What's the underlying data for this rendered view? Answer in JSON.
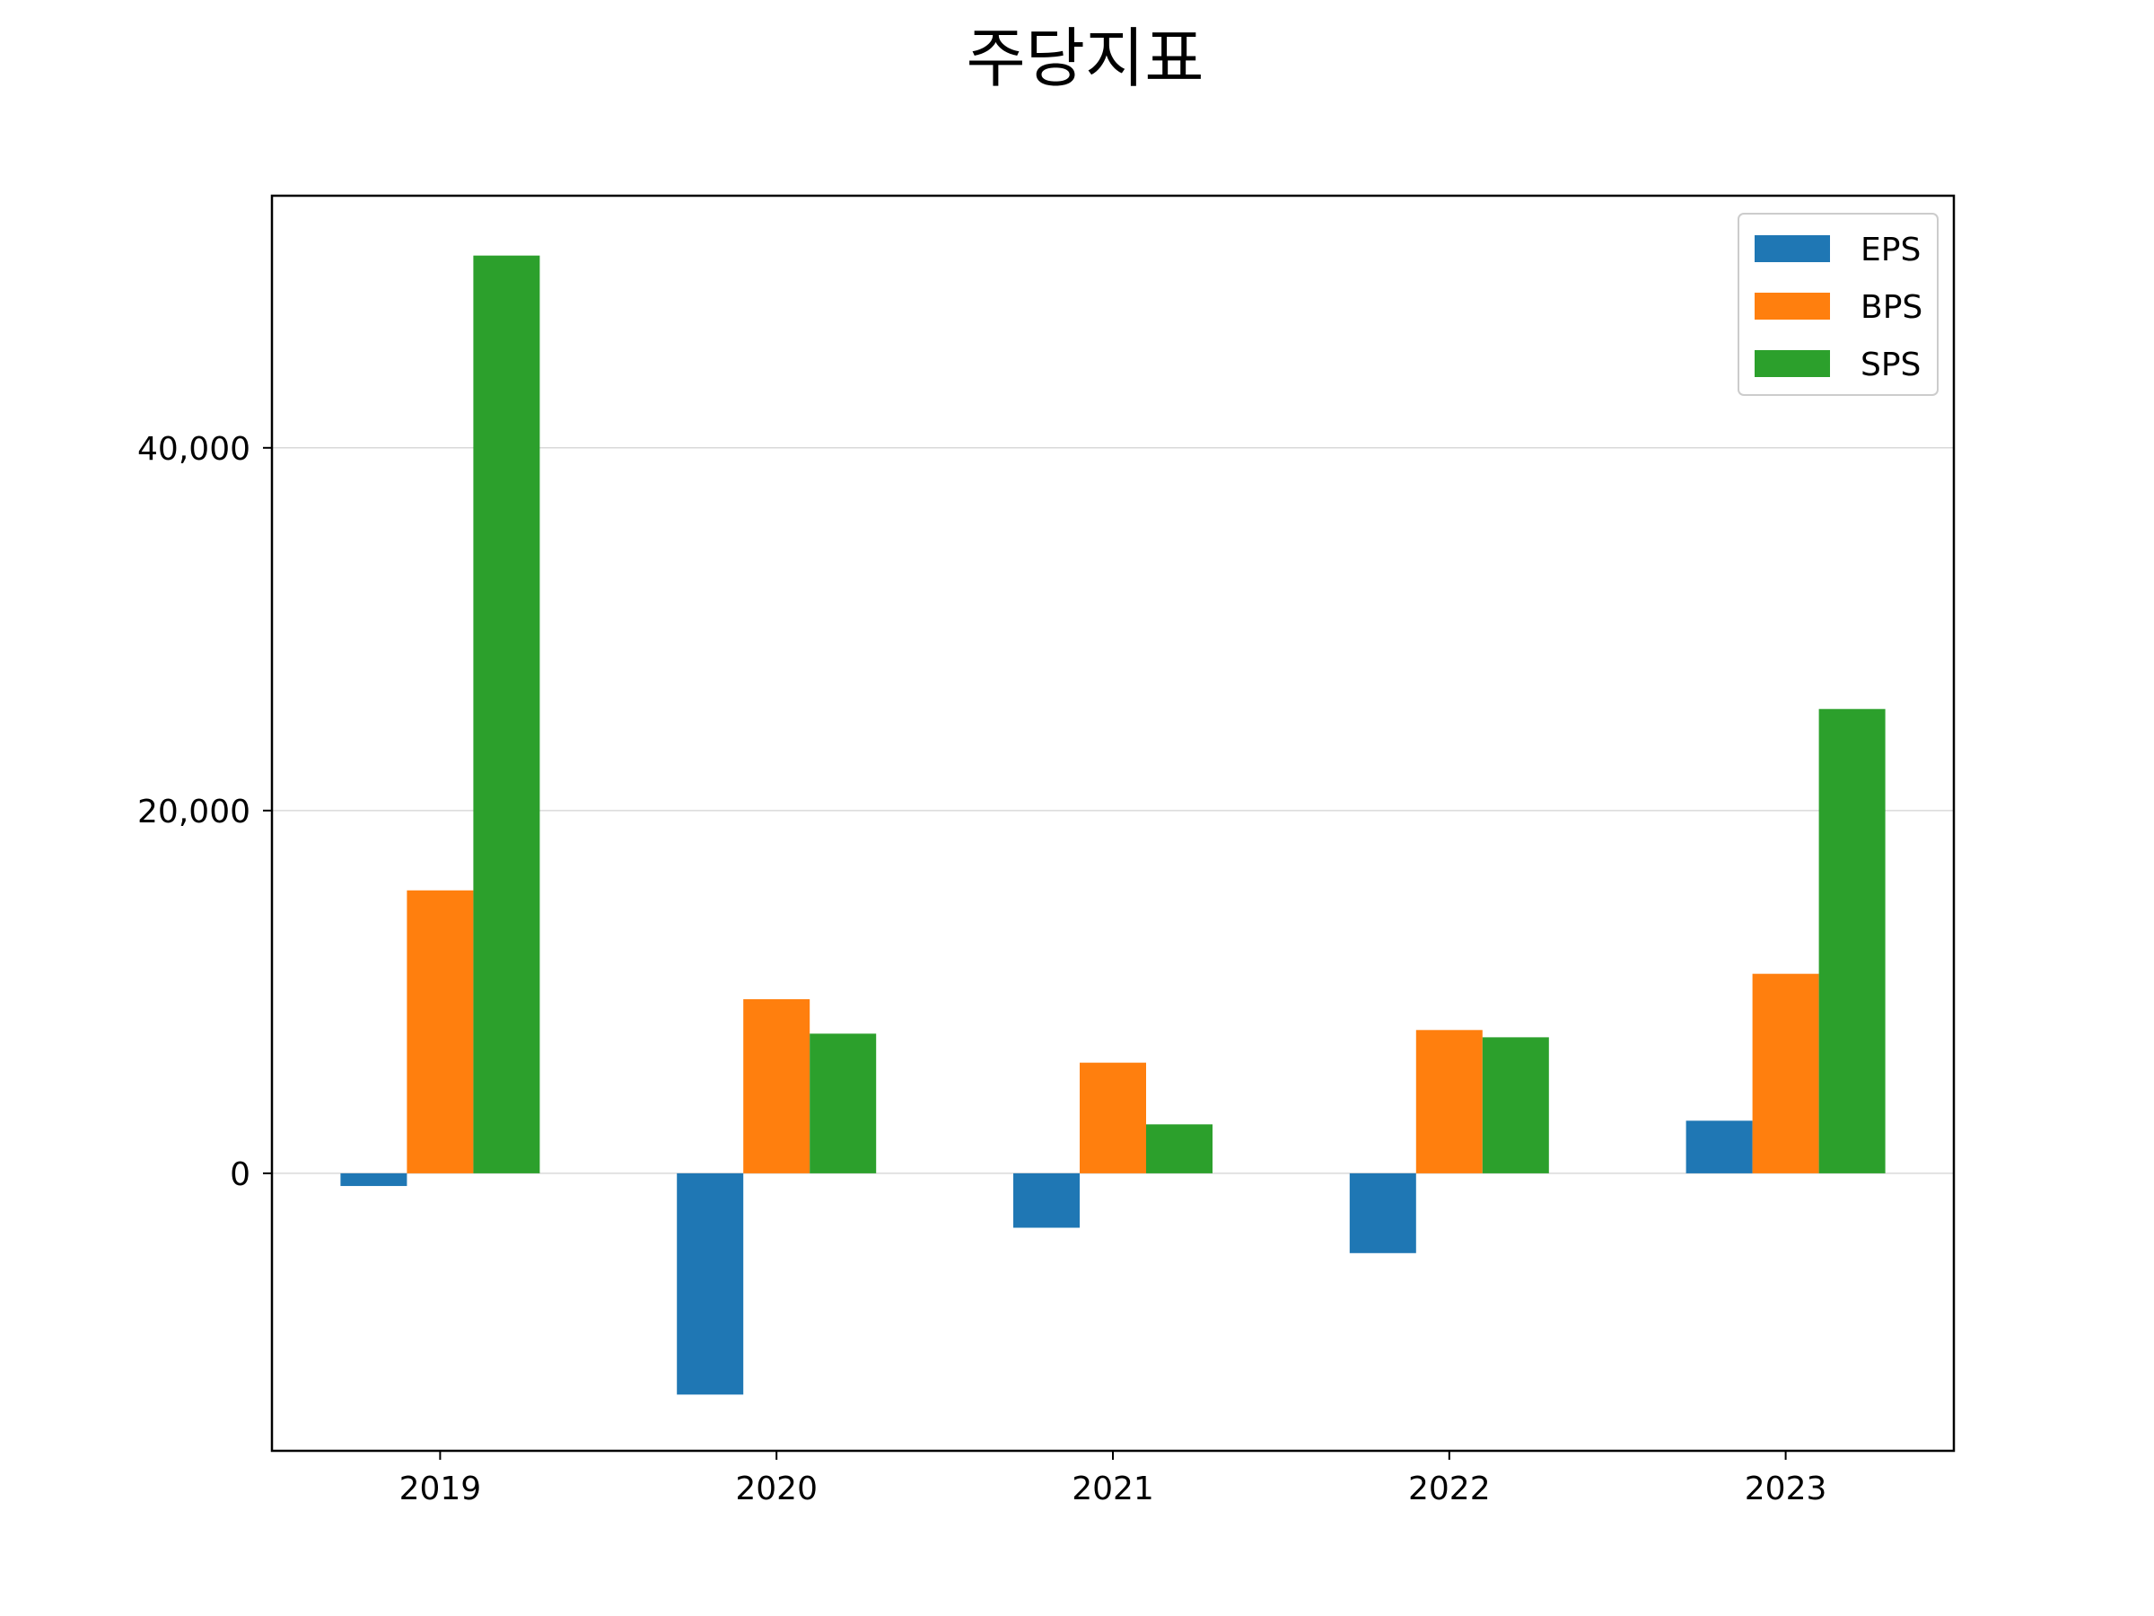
{
  "chart_data": {
    "type": "bar",
    "title": "주당지표",
    "xlabel": "",
    "ylabel": "",
    "categories": [
      "2019",
      "2020",
      "2021",
      "2022",
      "2023"
    ],
    "series": [
      {
        "name": "EPS",
        "color": "#1f77b4",
        "values": [
          -700,
          -12200,
          -3000,
          -4400,
          2900
        ]
      },
      {
        "name": "BPS",
        "color": "#ff7f0e",
        "values": [
          15600,
          9600,
          6100,
          7900,
          11000
        ]
      },
      {
        "name": "SPS",
        "color": "#2ca02c",
        "values": [
          50600,
          7700,
          2700,
          7500,
          25600
        ]
      }
    ],
    "ylim": [
      -15300,
      53900
    ],
    "yticks": [
      0,
      20000,
      40000
    ],
    "ytick_labels": [
      "0",
      "20,000",
      "40,000"
    ],
    "grid": {
      "y": true,
      "x": false
    },
    "legend": {
      "position": "top-right"
    }
  }
}
